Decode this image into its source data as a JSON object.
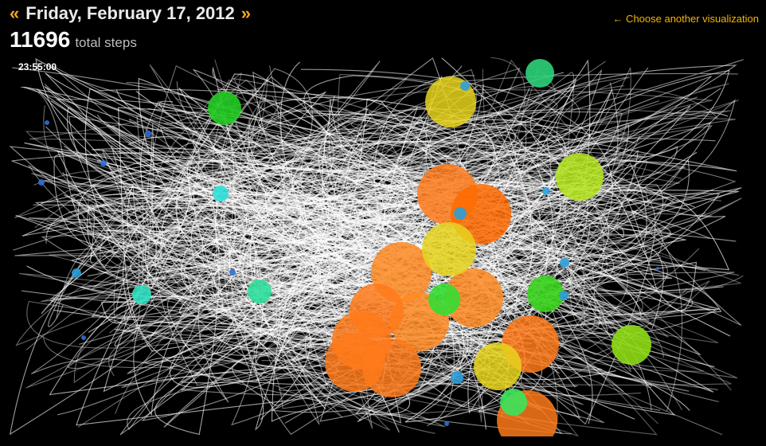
{
  "header": {
    "prev_arrow": "«",
    "date_title": "Friday, February 17, 2012",
    "next_arrow": "»"
  },
  "summary": {
    "total_steps": "11696",
    "steps_label": "total steps"
  },
  "nav": {
    "choose_link": "← Choose another visualization"
  },
  "visualization": {
    "time_readout": "23:55:00",
    "colors": {
      "background": "#000000",
      "trail": "#ffffff",
      "accent": "#f5a623",
      "link": "#f5b500"
    },
    "bubbles": [
      {
        "color": "#ff7a1a"
      },
      {
        "color": "#ff6a00"
      },
      {
        "color": "#ff8a22"
      },
      {
        "color": "#ff8a22"
      },
      {
        "color": "#ff7a1a"
      },
      {
        "color": "#ff7a1a"
      },
      {
        "color": "#ff7a1a"
      },
      {
        "color": "#ff7a1a"
      },
      {
        "color": "#ff8a22"
      },
      {
        "color": "#ff7a1a"
      },
      {
        "color": "#ff7a1a"
      },
      {
        "color": "#e6d31c"
      },
      {
        "color": "#e6d31c"
      },
      {
        "color": "#e6d31c"
      },
      {
        "color": "#b5e61c"
      },
      {
        "color": "#8edc15"
      },
      {
        "color": "#3ad31c"
      },
      {
        "color": "#33dd33"
      },
      {
        "color": "#22cc22"
      },
      {
        "color": "#3ae45c"
      },
      {
        "color": "#2ed27a"
      },
      {
        "color": "#2ee09a"
      },
      {
        "color": "#2ee0c0"
      },
      {
        "color": "#2ee0dc"
      },
      {
        "color": "#2c9fd8"
      },
      {
        "color": "#2c9fd8"
      },
      {
        "color": "#2c9fd8"
      },
      {
        "color": "#2c9fd8"
      },
      {
        "color": "#2c9fd8"
      },
      {
        "color": "#2c9fd8"
      },
      {
        "color": "#2c9fd8"
      },
      {
        "color": "#2c6fd8"
      },
      {
        "color": "#2c6fd8"
      },
      {
        "color": "#2c6fd8"
      },
      {
        "color": "#2c6fd8"
      },
      {
        "color": "#2c6fd8"
      },
      {
        "color": "#2c6fd8"
      },
      {
        "color": "#2c6fd8"
      },
      {
        "color": "#2c6fd8"
      }
    ]
  }
}
